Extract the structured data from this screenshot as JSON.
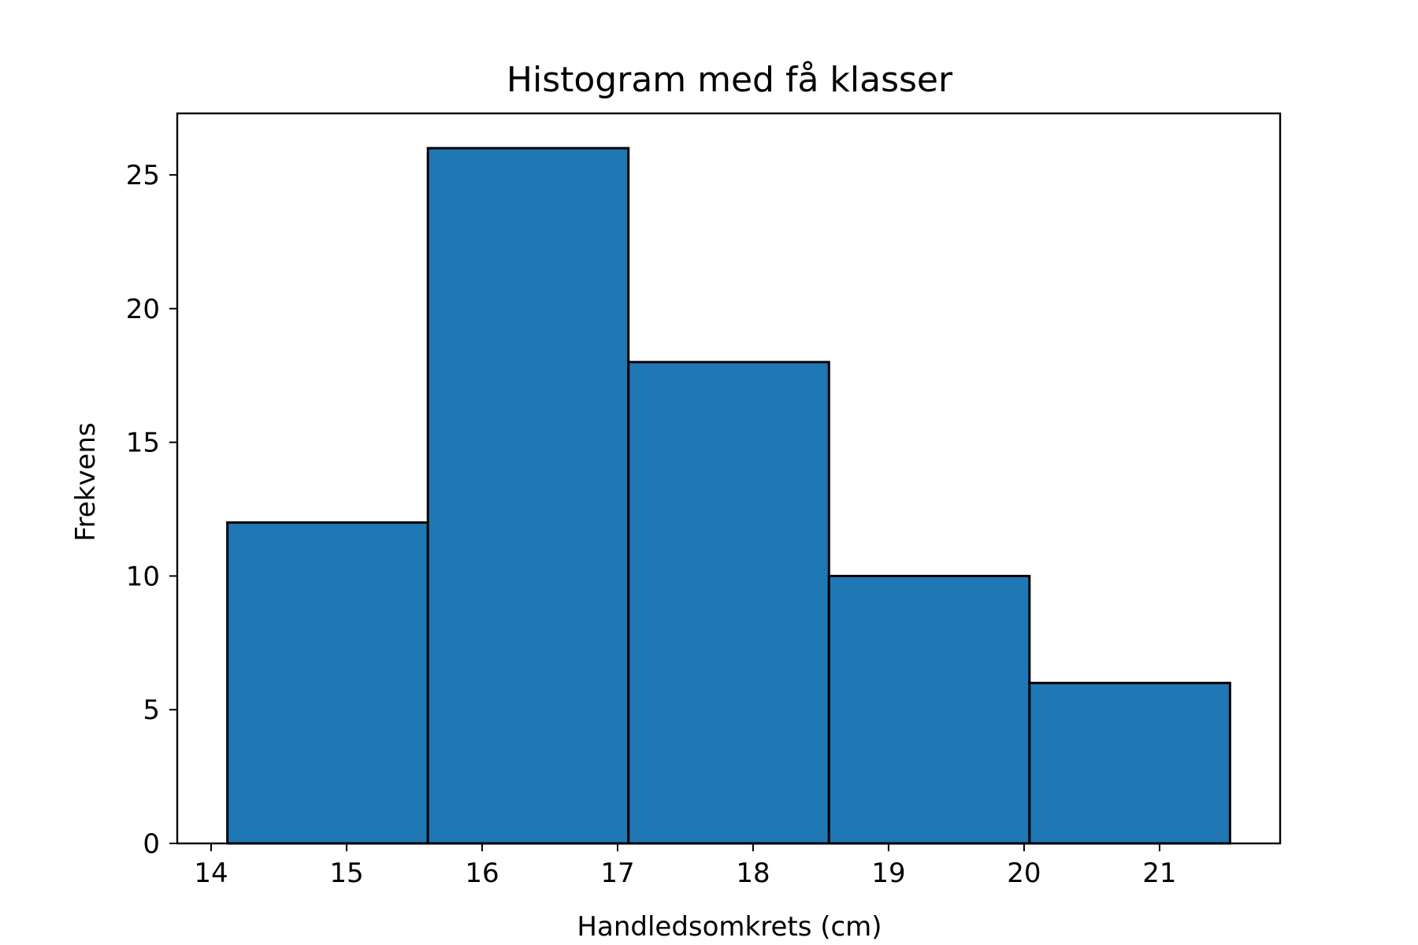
{
  "chart_data": {
    "type": "bar",
    "title": "Histogram med få klasser",
    "xlabel": "Handledsomkrets (cm)",
    "ylabel": "Frekvens",
    "bins": [
      {
        "start": 14.12,
        "end": 15.6,
        "value": 12
      },
      {
        "start": 15.6,
        "end": 17.08,
        "value": 26
      },
      {
        "start": 17.08,
        "end": 18.56,
        "value": 18
      },
      {
        "start": 18.56,
        "end": 20.04,
        "value": 10
      },
      {
        "start": 20.04,
        "end": 21.52,
        "value": 6
      }
    ],
    "xlim": [
      13.75,
      21.89
    ],
    "ylim": [
      0,
      27.3
    ],
    "xticks": [
      14,
      15,
      16,
      17,
      18,
      19,
      20,
      21
    ],
    "yticks": [
      0,
      5,
      10,
      15,
      20,
      25
    ],
    "grid": false,
    "colors": {
      "bar_fill": "#1f77b4",
      "bar_edge": "#000000",
      "axes": "#000000"
    }
  }
}
